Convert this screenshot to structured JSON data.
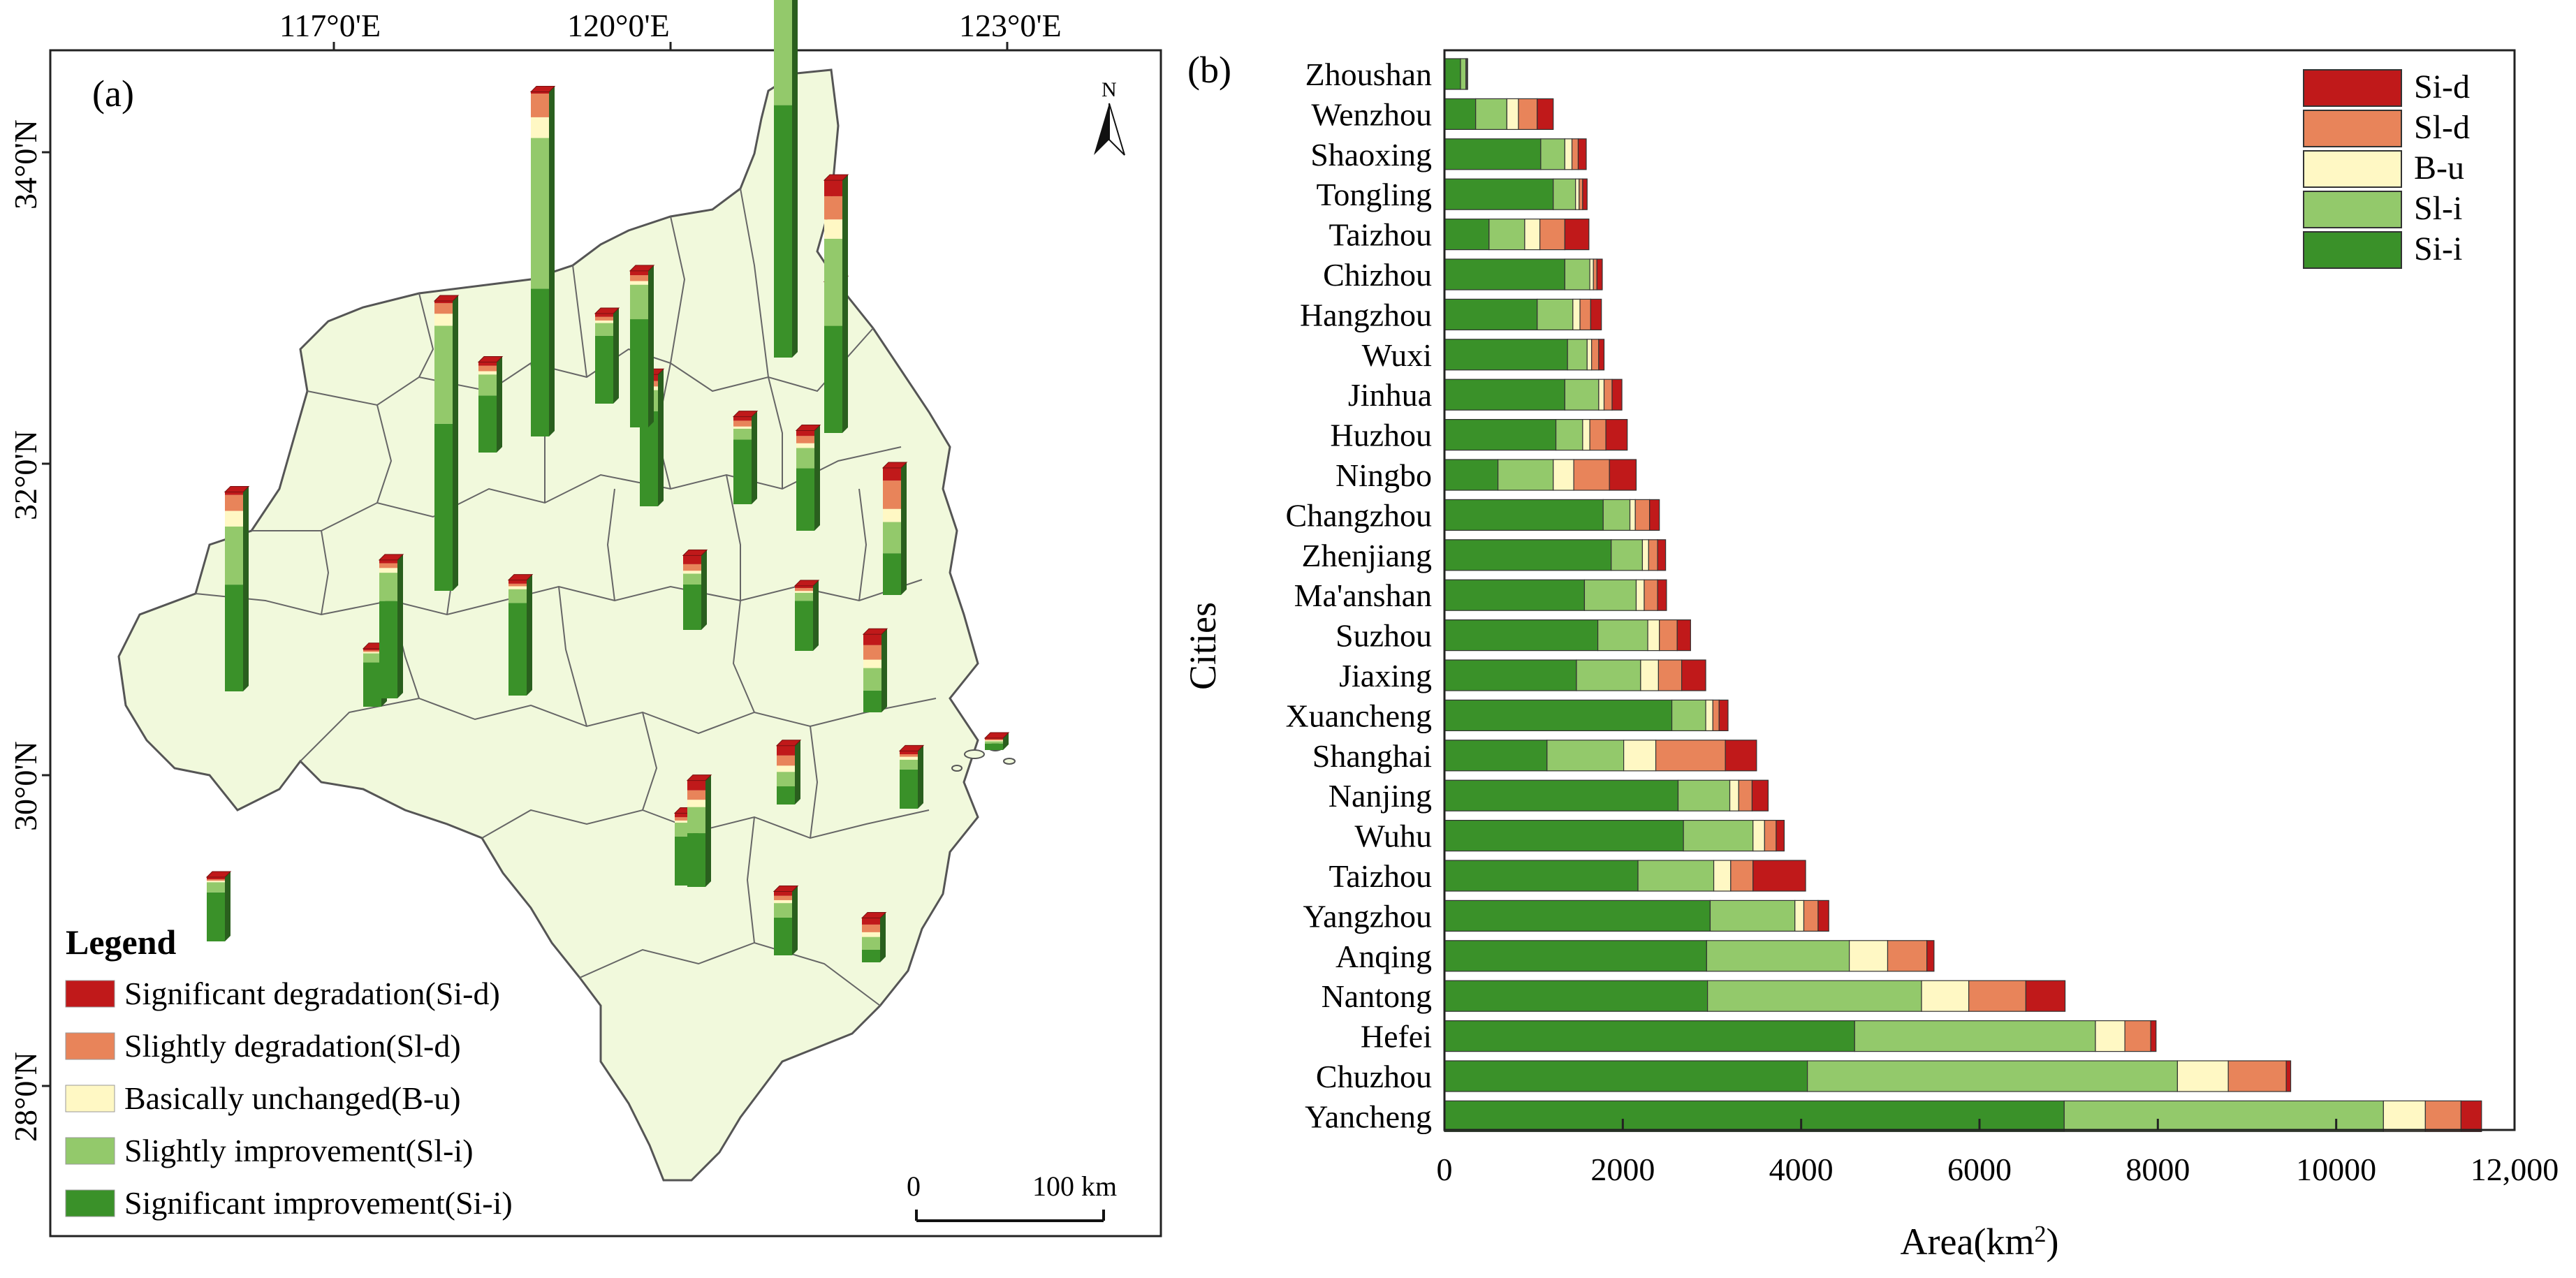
{
  "map_panel": {
    "label": "(a)",
    "lon_ticks": [
      "117°0'E",
      "120°0'E",
      "123°0'E"
    ],
    "lat_ticks": [
      "34°0'N",
      "32°0'N",
      "30°0'N",
      "28°0'N"
    ],
    "north_arrow": "N",
    "scale_bar": {
      "start": "0",
      "end": "100 km"
    },
    "legend": {
      "title": "Legend",
      "items": [
        {
          "label": "Significant degradation(Si-d)",
          "color": "#c0191a"
        },
        {
          "label": "Slightly degradation(Sl-d)",
          "color": "#e8845a"
        },
        {
          "label": "Basically unchanged(B-u)",
          "color": "#fff8c4"
        },
        {
          "label": "Slightly improvement(Sl-i)",
          "color": "#93c96b"
        },
        {
          "label": "Significant improvement(Si-i)",
          "color": "#3a9129"
        }
      ]
    },
    "land_color": "#f1f9dc"
  },
  "chart_data": {
    "type": "bar",
    "orientation": "horizontal",
    "stacked": true,
    "panel_label": "(b)",
    "xlabel": "Area(km",
    "xlabel_sup": "2",
    "xlabel_close": ")",
    "ylabel": "Cities",
    "xlim": [
      0,
      12000
    ],
    "xticks": [
      0,
      2000,
      4000,
      6000,
      8000,
      10000,
      12000
    ],
    "xtick_labels": [
      "0",
      "2000",
      "4000",
      "6000",
      "8000",
      "10000",
      "12,000"
    ],
    "legend_position": "top-right",
    "categories": [
      "Zhoushan",
      "Wenzhou",
      "Shaoxing",
      "Tongling",
      "Taizhou",
      "Chizhou",
      "Hangzhou",
      "Wuxi",
      "Jinhua",
      "Huzhou",
      "Ningbo",
      "Changzhou",
      "Zhenjiang",
      "Ma'anshan",
      "Suzhou",
      "Jiaxing",
      "Xuancheng",
      "Shanghai",
      "Nanjing",
      "Wuhu",
      "Taizhou",
      "Yangzhou",
      "Anqing",
      "Nantong",
      "Hefei",
      "Chuzhou",
      "Yancheng"
    ],
    "series": [
      {
        "name": "Si-i",
        "color": "#3a9129",
        "values": [
          180,
          350,
          1080,
          1220,
          500,
          1350,
          1040,
          1380,
          1350,
          1250,
          600,
          1780,
          1870,
          1570,
          1720,
          1480,
          2550,
          1150,
          2620,
          2680,
          2170,
          2980,
          2940,
          2950,
          4600,
          4070,
          6950
        ]
      },
      {
        "name": "Sl-i",
        "color": "#93c96b",
        "values": [
          60,
          350,
          270,
          250,
          400,
          280,
          400,
          220,
          380,
          300,
          620,
          300,
          350,
          580,
          560,
          720,
          380,
          860,
          580,
          780,
          850,
          950,
          1600,
          2400,
          2700,
          4150,
          3580
        ]
      },
      {
        "name": "B-u",
        "color": "#fff8c4",
        "values": [
          10,
          130,
          80,
          40,
          170,
          40,
          80,
          50,
          60,
          80,
          230,
          60,
          70,
          90,
          130,
          200,
          80,
          360,
          100,
          130,
          190,
          100,
          430,
          530,
          330,
          570,
          470
        ]
      },
      {
        "name": "Sl-d",
        "color": "#e8845a",
        "values": [
          5,
          210,
          70,
          40,
          280,
          40,
          120,
          80,
          90,
          180,
          400,
          160,
          100,
          150,
          200,
          260,
          70,
          780,
          150,
          130,
          250,
          160,
          440,
          640,
          290,
          650,
          400
        ]
      },
      {
        "name": "Si-d",
        "color": "#c0191a",
        "values": [
          5,
          180,
          90,
          50,
          270,
          60,
          120,
          60,
          110,
          240,
          300,
          110,
          90,
          100,
          150,
          270,
          100,
          350,
          180,
          90,
          590,
          120,
          80,
          440,
          60,
          50,
          230
        ]
      }
    ]
  }
}
